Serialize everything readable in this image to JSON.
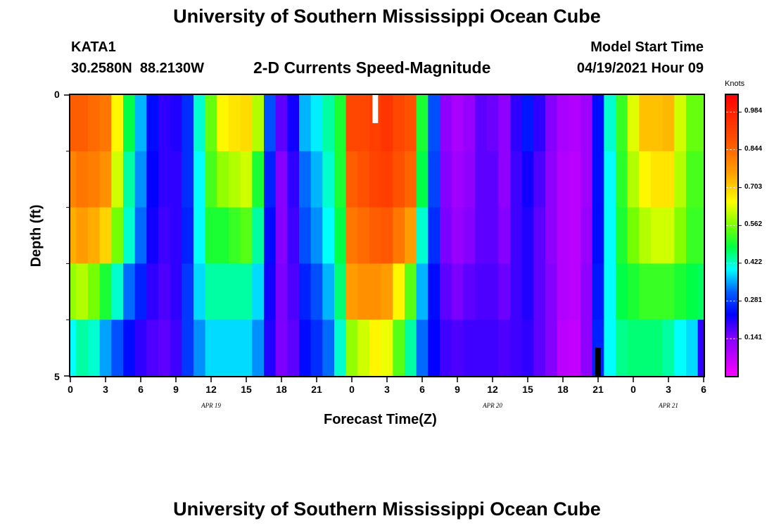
{
  "page": {
    "title_top": "University of Southern Mississippi Ocean Cube",
    "title_bottom": "University of Southern Mississippi Ocean Cube",
    "station_id": "KATA1",
    "station_coords": "30.2580N  88.2130W",
    "model_start_label": "Model Start Time",
    "model_start_value": "04/19/2021 Hour 09"
  },
  "chart_data": {
    "type": "heatmap",
    "title": "2-D Currents Speed-Magnitude",
    "xlabel": "Forecast Time(Z)",
    "ylabel": "Depth (ft)",
    "x_hours": [
      0,
      1,
      2,
      3,
      4,
      5,
      6,
      7,
      8,
      9,
      10,
      11,
      12,
      13,
      14,
      15,
      16,
      17,
      18,
      19,
      20,
      21,
      22,
      23,
      24,
      25,
      26,
      27,
      28,
      29,
      30,
      31,
      32,
      33,
      34,
      35,
      36,
      37,
      38,
      39,
      40,
      41,
      42,
      43,
      44,
      45,
      46,
      47,
      48,
      49,
      50,
      51,
      52,
      53,
      54
    ],
    "x_range": [
      0,
      54
    ],
    "x_tick_labels": [
      "0",
      "3",
      "6",
      "9",
      "12",
      "15",
      "18",
      "21",
      "0",
      "3",
      "6",
      "9",
      "12",
      "15",
      "18",
      "21",
      "0",
      "3",
      "6"
    ],
    "x_tick_hours": [
      0,
      3,
      6,
      9,
      12,
      15,
      18,
      21,
      24,
      27,
      30,
      33,
      36,
      39,
      42,
      45,
      48,
      51,
      54
    ],
    "date_labels": [
      {
        "label": "APR 19",
        "hour": 12
      },
      {
        "label": "APR 20",
        "hour": 36
      },
      {
        "label": "APR 21",
        "hour": 51
      }
    ],
    "depth_levels": [
      0,
      1,
      2,
      3,
      4,
      5
    ],
    "y_range": [
      0,
      5
    ],
    "y_tick_labels": [
      "0",
      "5"
    ],
    "y_minor_ticks": [
      1,
      2,
      3,
      4
    ],
    "colorbar": {
      "unit": "Knots",
      "min": 0,
      "max": 1.05,
      "ticks": [
        "0.984",
        "0.844",
        "0.703",
        "0.562",
        "0.422",
        "0.281",
        "0.141"
      ],
      "tick_values": [
        0.984,
        0.844,
        0.703,
        0.562,
        0.422,
        0.281,
        0.141
      ]
    },
    "speed_knots": [
      [
        0.86,
        0.86,
        0.84,
        0.82,
        0.66,
        0.48,
        0.36,
        0.24,
        0.2,
        0.21,
        0.27,
        0.42,
        0.55,
        0.66,
        0.68,
        0.69,
        0.6,
        0.3,
        0.17,
        0.22,
        0.36,
        0.39,
        0.44,
        0.5,
        0.9,
        0.9,
        0.92,
        0.94,
        0.9,
        0.88,
        0.5,
        0.3,
        0.13,
        0.1,
        0.12,
        0.17,
        0.16,
        0.13,
        0.2,
        0.25,
        0.2,
        0.14,
        0.1,
        0.09,
        0.11,
        0.24,
        0.42,
        0.52,
        0.63,
        0.72,
        0.72,
        0.73,
        0.62,
        0.55,
        0.55
      ],
      [
        0.8,
        0.82,
        0.81,
        0.78,
        0.62,
        0.44,
        0.34,
        0.23,
        0.2,
        0.2,
        0.27,
        0.4,
        0.53,
        0.58,
        0.6,
        0.62,
        0.5,
        0.26,
        0.14,
        0.2,
        0.32,
        0.36,
        0.42,
        0.5,
        0.86,
        0.88,
        0.91,
        0.92,
        0.88,
        0.85,
        0.48,
        0.29,
        0.14,
        0.11,
        0.13,
        0.17,
        0.17,
        0.13,
        0.19,
        0.22,
        0.18,
        0.13,
        0.09,
        0.08,
        0.11,
        0.24,
        0.4,
        0.51,
        0.6,
        0.66,
        0.68,
        0.68,
        0.6,
        0.53,
        0.53
      ],
      [
        0.74,
        0.76,
        0.74,
        0.7,
        0.56,
        0.42,
        0.32,
        0.22,
        0.19,
        0.2,
        0.26,
        0.4,
        0.5,
        0.5,
        0.52,
        0.54,
        0.44,
        0.24,
        0.14,
        0.19,
        0.3,
        0.34,
        0.4,
        0.48,
        0.82,
        0.84,
        0.86,
        0.87,
        0.82,
        0.76,
        0.42,
        0.27,
        0.15,
        0.12,
        0.14,
        0.17,
        0.17,
        0.14,
        0.19,
        0.21,
        0.17,
        0.13,
        0.09,
        0.08,
        0.12,
        0.24,
        0.4,
        0.5,
        0.56,
        0.6,
        0.62,
        0.62,
        0.57,
        0.52,
        0.52
      ],
      [
        0.58,
        0.6,
        0.56,
        0.5,
        0.42,
        0.32,
        0.26,
        0.2,
        0.18,
        0.2,
        0.28,
        0.38,
        0.44,
        0.44,
        0.44,
        0.44,
        0.38,
        0.22,
        0.15,
        0.18,
        0.26,
        0.3,
        0.36,
        0.46,
        0.76,
        0.78,
        0.78,
        0.76,
        0.66,
        0.54,
        0.36,
        0.24,
        0.17,
        0.15,
        0.17,
        0.18,
        0.18,
        0.16,
        0.19,
        0.21,
        0.17,
        0.14,
        0.09,
        0.08,
        0.13,
        0.25,
        0.4,
        0.48,
        0.5,
        0.52,
        0.52,
        0.52,
        0.5,
        0.48,
        0.47
      ],
      [
        0.4,
        0.44,
        0.42,
        0.35,
        0.3,
        0.24,
        0.2,
        0.18,
        0.17,
        0.19,
        0.28,
        0.34,
        0.38,
        0.38,
        0.38,
        0.38,
        0.34,
        0.21,
        0.15,
        0.17,
        0.24,
        0.27,
        0.32,
        0.42,
        0.58,
        0.62,
        0.66,
        0.64,
        0.54,
        0.44,
        0.32,
        0.23,
        0.19,
        0.18,
        0.19,
        0.19,
        0.19,
        0.18,
        0.19,
        0.2,
        0.17,
        0.14,
        0.08,
        0.07,
        0.13,
        0.26,
        0.4,
        0.45,
        0.46,
        0.46,
        0.46,
        0.44,
        0.4,
        0.38,
        0.2
      ]
    ],
    "markers": [
      {
        "type": "current_time",
        "hour": 26,
        "color": "#ffffff"
      },
      {
        "type": "event",
        "hour": 45,
        "color": "#000000"
      }
    ]
  }
}
